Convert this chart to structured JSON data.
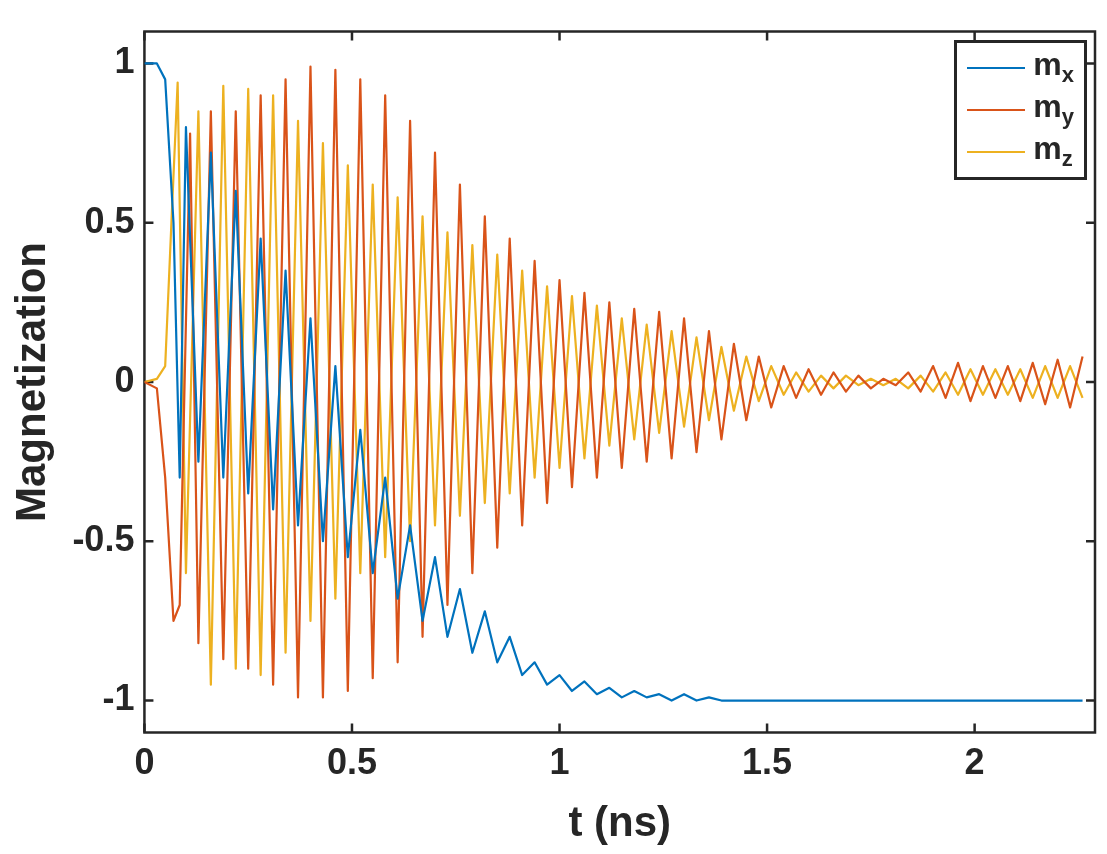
{
  "chart_data": {
    "type": "line",
    "xlabel": "t (ns)",
    "ylabel": "Magnetization",
    "xlim": [
      0,
      2.29
    ],
    "ylim": [
      -1.1,
      1.1
    ],
    "xticks": [
      0,
      0.5,
      1,
      1.5,
      2
    ],
    "yticks": [
      -1,
      -0.5,
      0,
      0.5,
      1
    ],
    "grid": false,
    "legend": "top right",
    "marker": "none",
    "line_style": "solid",
    "series": [
      {
        "name": "m$_{x}$",
        "color": "#0072bd",
        "x": [
          0,
          0.03,
          0.05,
          0.07,
          0.085,
          0.1,
          0.13,
          0.16,
          0.19,
          0.22,
          0.25,
          0.28,
          0.31,
          0.34,
          0.37,
          0.4,
          0.43,
          0.46,
          0.49,
          0.52,
          0.55,
          0.58,
          0.61,
          0.64,
          0.67,
          0.7,
          0.73,
          0.76,
          0.79,
          0.82,
          0.85,
          0.88,
          0.91,
          0.94,
          0.97,
          1.0,
          1.03,
          1.06,
          1.09,
          1.12,
          1.15,
          1.18,
          1.21,
          1.24,
          1.27,
          1.3,
          1.33,
          1.36,
          1.39,
          1.5,
          1.75,
          2.0,
          2.26
        ],
        "values": [
          1,
          1,
          0.95,
          0.5,
          -0.3,
          0.8,
          -0.25,
          0.72,
          -0.3,
          0.6,
          -0.35,
          0.45,
          -0.4,
          0.35,
          -0.45,
          0.2,
          -0.5,
          0.05,
          -0.55,
          -0.15,
          -0.6,
          -0.3,
          -0.68,
          -0.45,
          -0.75,
          -0.55,
          -0.8,
          -0.65,
          -0.85,
          -0.72,
          -0.88,
          -0.8,
          -0.92,
          -0.88,
          -0.95,
          -0.92,
          -0.97,
          -0.94,
          -0.98,
          -0.96,
          -0.99,
          -0.97,
          -0.99,
          -0.98,
          -1,
          -0.98,
          -1,
          -0.99,
          -1,
          -1,
          -1,
          -1,
          -1
        ]
      },
      {
        "name": "m$_{y}$",
        "color": "#d95319",
        "x": [
          0,
          0.03,
          0.05,
          0.07,
          0.085,
          0.11,
          0.13,
          0.16,
          0.19,
          0.22,
          0.25,
          0.28,
          0.31,
          0.34,
          0.37,
          0.4,
          0.43,
          0.46,
          0.49,
          0.52,
          0.55,
          0.58,
          0.61,
          0.64,
          0.67,
          0.7,
          0.73,
          0.76,
          0.79,
          0.82,
          0.85,
          0.88,
          0.91,
          0.94,
          0.97,
          1.0,
          1.03,
          1.06,
          1.09,
          1.12,
          1.15,
          1.18,
          1.21,
          1.24,
          1.27,
          1.3,
          1.33,
          1.36,
          1.39,
          1.42,
          1.45,
          1.48,
          1.51,
          1.54,
          1.57,
          1.6,
          1.63,
          1.66,
          1.69,
          1.72,
          1.75,
          1.78,
          1.81,
          1.84,
          1.87,
          1.9,
          1.93,
          1.96,
          1.99,
          2.02,
          2.05,
          2.08,
          2.11,
          2.14,
          2.17,
          2.2,
          2.23,
          2.26
        ],
        "values": [
          0,
          -0.02,
          -0.3,
          -0.75,
          -0.7,
          0.78,
          -0.82,
          0.85,
          -0.87,
          0.85,
          -0.9,
          0.9,
          -0.95,
          0.95,
          -0.99,
          0.99,
          -0.99,
          0.98,
          -0.97,
          0.95,
          -0.93,
          0.9,
          -0.88,
          0.82,
          -0.8,
          0.72,
          -0.7,
          0.62,
          -0.6,
          0.52,
          -0.52,
          0.45,
          -0.45,
          0.38,
          -0.38,
          0.32,
          -0.33,
          0.28,
          -0.3,
          0.25,
          -0.27,
          0.23,
          -0.25,
          0.22,
          -0.24,
          0.2,
          -0.22,
          0.16,
          -0.18,
          0.12,
          -0.12,
          0.08,
          -0.08,
          0.05,
          -0.05,
          0.04,
          -0.04,
          0.03,
          -0.03,
          0.02,
          -0.02,
          0.01,
          -0.01,
          0.03,
          -0.03,
          0.05,
          -0.05,
          0.06,
          -0.06,
          0.05,
          -0.05,
          0.05,
          -0.06,
          0.06,
          -0.07,
          0.07,
          -0.08,
          0.08
        ]
      },
      {
        "name": "m$_{z}$",
        "color": "#edb120",
        "x": [
          0,
          0.03,
          0.05,
          0.065,
          0.08,
          0.1,
          0.13,
          0.16,
          0.19,
          0.22,
          0.25,
          0.28,
          0.31,
          0.34,
          0.37,
          0.4,
          0.43,
          0.46,
          0.49,
          0.52,
          0.55,
          0.58,
          0.61,
          0.64,
          0.67,
          0.7,
          0.73,
          0.76,
          0.79,
          0.82,
          0.85,
          0.88,
          0.91,
          0.94,
          0.97,
          1.0,
          1.03,
          1.06,
          1.09,
          1.12,
          1.15,
          1.18,
          1.21,
          1.24,
          1.27,
          1.3,
          1.33,
          1.36,
          1.39,
          1.42,
          1.45,
          1.48,
          1.51,
          1.54,
          1.57,
          1.6,
          1.63,
          1.66,
          1.69,
          1.72,
          1.75,
          1.78,
          1.81,
          1.84,
          1.87,
          1.9,
          1.93,
          1.96,
          1.99,
          2.02,
          2.05,
          2.08,
          2.11,
          2.14,
          2.17,
          2.2,
          2.23,
          2.26
        ],
        "values": [
          0,
          0.01,
          0.05,
          0.5,
          0.94,
          -0.6,
          0.85,
          -0.95,
          0.93,
          -0.9,
          0.92,
          -0.92,
          0.9,
          -0.85,
          0.82,
          -0.75,
          0.75,
          -0.68,
          0.68,
          -0.6,
          0.62,
          -0.55,
          0.58,
          -0.5,
          0.52,
          -0.45,
          0.47,
          -0.42,
          0.43,
          -0.38,
          0.4,
          -0.35,
          0.35,
          -0.3,
          0.3,
          -0.27,
          0.27,
          -0.24,
          0.24,
          -0.2,
          0.2,
          -0.18,
          0.18,
          -0.16,
          0.16,
          -0.14,
          0.14,
          -0.12,
          0.11,
          -0.09,
          0.08,
          -0.06,
          0.05,
          -0.04,
          0.03,
          -0.03,
          0.02,
          -0.02,
          0.02,
          -0.01,
          0.01,
          -0.01,
          0.01,
          -0.02,
          0.02,
          -0.03,
          0.03,
          -0.04,
          0.04,
          -0.04,
          0.04,
          -0.04,
          0.04,
          -0.05,
          0.05,
          -0.05,
          0.05,
          -0.05
        ]
      }
    ]
  }
}
